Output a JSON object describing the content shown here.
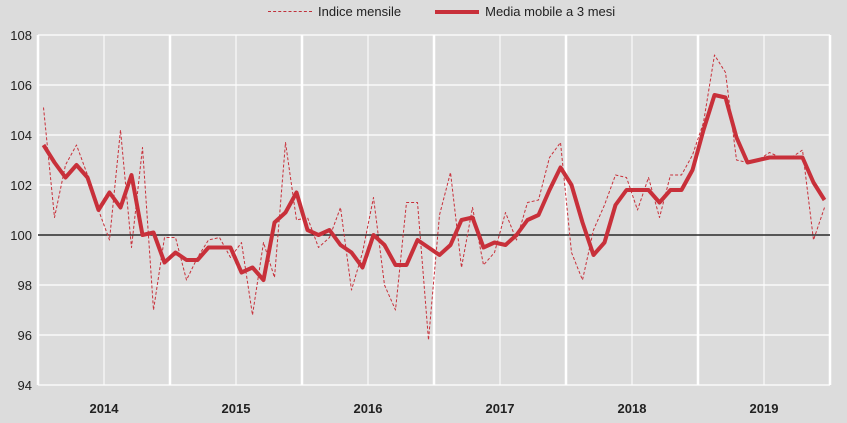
{
  "legend": {
    "monthly_label": "Indice mensile",
    "moving_avg_label": "Media mobile a 3 mesi"
  },
  "colors": {
    "background": "#dcdcdc",
    "grid": "#ffffff",
    "series": "#c8303a",
    "baseline": "#000000"
  },
  "chart_data": {
    "type": "line",
    "title": "",
    "xlabel": "",
    "ylabel": "",
    "ylim": [
      94,
      108
    ],
    "yticks": [
      94,
      96,
      98,
      100,
      102,
      104,
      106,
      108
    ],
    "xtick_labels": [
      "2014",
      "2015",
      "2016",
      "2017",
      "2018",
      "2019"
    ],
    "reference_line": 100,
    "grid": true,
    "legend_position": "top",
    "x": [
      "2014-01",
      "2014-02",
      "2014-03",
      "2014-04",
      "2014-05",
      "2014-06",
      "2014-07",
      "2014-08",
      "2014-09",
      "2014-10",
      "2014-11",
      "2014-12",
      "2015-01",
      "2015-02",
      "2015-03",
      "2015-04",
      "2015-05",
      "2015-06",
      "2015-07",
      "2015-08",
      "2015-09",
      "2015-10",
      "2015-11",
      "2015-12",
      "2016-01",
      "2016-02",
      "2016-03",
      "2016-04",
      "2016-05",
      "2016-06",
      "2016-07",
      "2016-08",
      "2016-09",
      "2016-10",
      "2016-11",
      "2016-12",
      "2017-01",
      "2017-02",
      "2017-03",
      "2017-04",
      "2017-05",
      "2017-06",
      "2017-07",
      "2017-08",
      "2017-09",
      "2017-10",
      "2017-11",
      "2017-12",
      "2018-01",
      "2018-02",
      "2018-03",
      "2018-04",
      "2018-05",
      "2018-06",
      "2018-07",
      "2018-08",
      "2018-09",
      "2018-10",
      "2018-11",
      "2018-12",
      "2019-01",
      "2019-02",
      "2019-03",
      "2019-04",
      "2019-05",
      "2019-06",
      "2019-07",
      "2019-08",
      "2019-09",
      "2019-10",
      "2019-11",
      "2019-12"
    ],
    "series": [
      {
        "name": "Indice mensile",
        "style": "dashed",
        "values": [
          105.1,
          100.7,
          102.8,
          103.6,
          102.4,
          101.0,
          99.8,
          104.2,
          99.5,
          103.5,
          97.0,
          99.9,
          99.9,
          98.2,
          99.1,
          99.8,
          99.9,
          99.1,
          99.7,
          96.8,
          99.7,
          98.3,
          103.7,
          100.6,
          100.7,
          99.5,
          99.9,
          101.1,
          97.8,
          99.3,
          101.5,
          98.0,
          97.0,
          101.3,
          101.3,
          95.8,
          100.8,
          102.5,
          98.7,
          101.1,
          98.8,
          99.3,
          100.9,
          99.8,
          101.3,
          101.4,
          103.1,
          103.7,
          99.3,
          98.2,
          100.2,
          101.2,
          102.4,
          102.3,
          101.0,
          102.3,
          100.7,
          102.4,
          102.4,
          103.2,
          104.5,
          107.2,
          106.5,
          103.0,
          102.9,
          103.0,
          103.3,
          103.1,
          103.1,
          103.4,
          99.8,
          101.1
        ]
      },
      {
        "name": "Media mobile a 3 mesi",
        "style": "solid",
        "values": [
          103.6,
          102.9,
          102.3,
          102.8,
          102.3,
          101.0,
          101.7,
          101.1,
          102.4,
          100.0,
          100.1,
          98.9,
          99.3,
          99.0,
          99.0,
          99.5,
          99.5,
          99.5,
          98.5,
          98.7,
          98.2,
          100.5,
          100.9,
          101.7,
          100.2,
          100.0,
          100.2,
          99.6,
          99.3,
          98.7,
          100.0,
          99.6,
          98.8,
          98.8,
          99.8,
          99.5,
          99.2,
          99.6,
          100.6,
          100.7,
          99.5,
          99.7,
          99.6,
          100.0,
          100.6,
          100.8,
          101.8,
          102.7,
          102.0,
          100.5,
          99.2,
          99.7,
          101.2,
          101.8,
          101.8,
          101.8,
          101.3,
          101.8,
          101.8,
          102.6,
          104.2,
          105.6,
          105.5,
          103.9,
          102.9,
          103.0,
          103.1,
          103.1,
          103.1,
          103.1,
          102.1,
          101.4
        ]
      }
    ]
  }
}
